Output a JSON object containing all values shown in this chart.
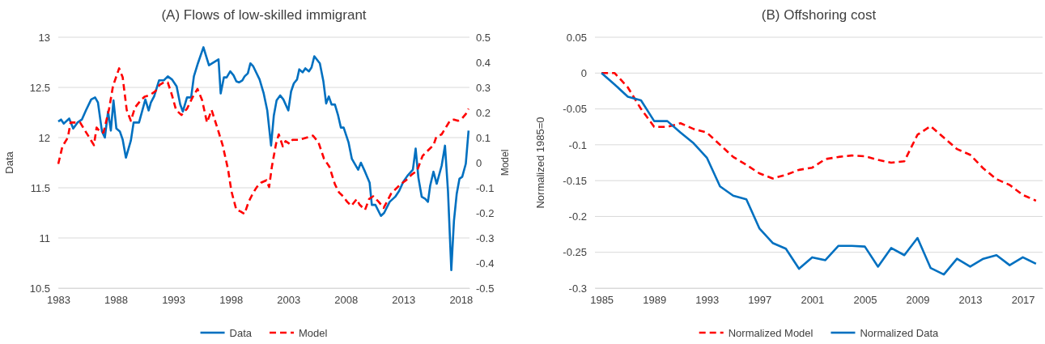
{
  "chart_data": [
    {
      "type": "line",
      "title": "(A) Flows of low-skilled immigrant",
      "ylabel": "Data",
      "y2label": "Model",
      "xlim": [
        1983,
        2018.75
      ],
      "xticks": [
        1983,
        1988,
        1993,
        1998,
        2003,
        2008,
        2013,
        2018
      ],
      "ylim": [
        10.5,
        13
      ],
      "yticks": [
        10.5,
        11,
        11.5,
        12,
        12.5,
        13
      ],
      "y2lim": [
        -0.5,
        0.5
      ],
      "y2ticks": [
        -0.5,
        -0.4,
        -0.3,
        -0.2,
        -0.1,
        0,
        0.1,
        0.2,
        0.3,
        0.4,
        0.5
      ],
      "grid": "y",
      "legend": "bottom",
      "series": [
        {
          "name": "Data",
          "color": "#0070c0",
          "line_style": "solid",
          "x": [
            1983.0,
            1983.24,
            1983.48,
            1983.95,
            1984.3,
            1984.67,
            1985.05,
            1985.4,
            1985.86,
            1986.2,
            1986.45,
            1986.8,
            1987.05,
            1987.33,
            1987.57,
            1987.8,
            1988.05,
            1988.36,
            1988.6,
            1988.88,
            1989.31,
            1989.55,
            1990.02,
            1990.57,
            1990.86,
            1991.05,
            1991.33,
            1991.76,
            1992.17,
            1992.52,
            1992.88,
            1993.29,
            1993.6,
            1993.83,
            1994.19,
            1994.55,
            1994.79,
            1995.14,
            1995.62,
            1996.1,
            1996.93,
            1997.12,
            1997.4,
            1997.64,
            1997.95,
            1998.24,
            1998.48,
            1998.71,
            1999.0,
            1999.2,
            1999.48,
            1999.7,
            1999.95,
            2000.5,
            2000.86,
            2001.17,
            2001.5,
            2001.74,
            2001.98,
            2002.29,
            2002.57,
            2003.0,
            2003.24,
            2003.48,
            2003.76,
            2003.95,
            2004.24,
            2004.48,
            2004.79,
            2005.02,
            2005.26,
            2005.74,
            2006.05,
            2006.29,
            2006.52,
            2006.76,
            2007.05,
            2007.33,
            2007.57,
            2007.81,
            2008.24,
            2008.52,
            2009.07,
            2009.31,
            2009.67,
            2010.07,
            2010.26,
            2010.57,
            2011.05,
            2011.33,
            2011.81,
            2012.29,
            2012.64,
            2013.0,
            2013.36,
            2013.83,
            2014.07,
            2014.31,
            2014.6,
            2014.9,
            2015.14,
            2015.33,
            2015.62,
            2015.9,
            2016.33,
            2016.62,
            2016.88,
            2017.17,
            2017.4,
            2017.64,
            2017.88,
            2018.12,
            2018.43,
            2018.67
          ],
          "values": [
            12.16,
            12.18,
            12.14,
            12.19,
            12.09,
            12.15,
            12.18,
            12.27,
            12.38,
            12.4,
            12.35,
            12.06,
            12.0,
            12.26,
            12.07,
            12.37,
            12.09,
            12.06,
            11.98,
            11.8,
            11.97,
            12.15,
            12.15,
            12.38,
            12.27,
            12.35,
            12.41,
            12.57,
            12.57,
            12.61,
            12.58,
            12.51,
            12.33,
            12.26,
            12.4,
            12.4,
            12.61,
            12.74,
            12.9,
            12.72,
            12.78,
            12.44,
            12.6,
            12.6,
            12.66,
            12.62,
            12.56,
            12.55,
            12.57,
            12.61,
            12.64,
            12.74,
            12.71,
            12.58,
            12.44,
            12.27,
            11.92,
            12.22,
            12.37,
            12.42,
            12.38,
            12.27,
            12.46,
            12.54,
            12.58,
            12.68,
            12.65,
            12.69,
            12.66,
            12.7,
            12.81,
            12.74,
            12.56,
            12.34,
            12.41,
            12.33,
            12.33,
            12.22,
            12.1,
            12.1,
            11.95,
            11.79,
            11.68,
            11.75,
            11.66,
            11.55,
            11.33,
            11.33,
            11.22,
            11.25,
            11.36,
            11.41,
            11.47,
            11.56,
            11.62,
            11.68,
            11.89,
            11.6,
            11.41,
            11.39,
            11.36,
            11.52,
            11.66,
            11.54,
            11.72,
            11.92,
            11.47,
            10.68,
            11.17,
            11.44,
            11.59,
            11.61,
            11.74,
            12.07
          ]
        },
        {
          "name": "Model",
          "color": "#ff0000",
          "line_style": "dashed",
          "axis": "y2",
          "x": [
            1983.0,
            1983.36,
            1983.83,
            1984.07,
            1984.9,
            1985.38,
            1986.1,
            1986.33,
            1986.69,
            1986.93,
            1987.4,
            1987.76,
            1988.29,
            1988.6,
            1988.95,
            1989.31,
            1989.67,
            1990.14,
            1990.5,
            1990.98,
            1991.45,
            1991.81,
            1992.17,
            1992.52,
            1992.88,
            1993.24,
            1993.71,
            1994.19,
            1994.67,
            1995.1,
            1995.5,
            1995.93,
            1996.33,
            1996.93,
            1997.29,
            1997.76,
            1998.05,
            1998.48,
            1998.83,
            1999.19,
            1999.55,
            1999.9,
            2000.26,
            2000.62,
            2001.1,
            2001.33,
            2001.57,
            2001.93,
            2002.17,
            2002.52,
            2002.76,
            2003.12,
            2003.36,
            2003.95,
            2005.14,
            2005.62,
            2006.1,
            2006.57,
            2007.05,
            2007.4,
            2007.76,
            2008.12,
            2008.48,
            2008.95,
            2009.19,
            2009.67,
            2010.02,
            2010.38,
            2010.86,
            2011.29,
            2011.57,
            2011.93,
            2012.4,
            2012.76,
            2013.24,
            2013.71,
            2014.19,
            2014.67,
            2015.26,
            2015.62,
            2015.86,
            2016.33,
            2016.69,
            2017.05,
            2017.4,
            2017.76,
            2018.12,
            2018.43,
            2018.67
          ],
          "values": [
            -0.005,
            0.065,
            0.1,
            0.16,
            0.16,
            0.124,
            0.07,
            0.14,
            0.12,
            0.12,
            0.21,
            0.306,
            0.376,
            0.34,
            0.21,
            0.167,
            0.22,
            0.247,
            0.263,
            0.27,
            0.285,
            0.31,
            0.32,
            0.32,
            0.27,
            0.21,
            0.19,
            0.215,
            0.26,
            0.294,
            0.25,
            0.16,
            0.21,
            0.124,
            0.07,
            -0.027,
            -0.113,
            -0.188,
            -0.194,
            -0.204,
            -0.156,
            -0.124,
            -0.097,
            -0.08,
            -0.07,
            -0.097,
            -0.016,
            0.075,
            0.113,
            0.065,
            0.086,
            0.075,
            0.091,
            0.091,
            0.108,
            0.081,
            0.016,
            -0.016,
            -0.086,
            -0.118,
            -0.134,
            -0.156,
            -0.172,
            -0.145,
            -0.167,
            -0.188,
            -0.145,
            -0.134,
            -0.156,
            -0.18,
            -0.156,
            -0.124,
            -0.102,
            -0.086,
            -0.07,
            -0.048,
            -0.032,
            0.027,
            0.054,
            0.07,
            0.102,
            0.113,
            0.14,
            0.167,
            0.172,
            0.167,
            0.177,
            0.194,
            0.215
          ]
        }
      ]
    },
    {
      "type": "line",
      "title": "(B) Offshoring cost",
      "ylabel": "Normalized 1985=0",
      "xlim": [
        1984.5,
        2018.5
      ],
      "xticks": [
        1985,
        1989,
        1993,
        1997,
        2001,
        2005,
        2009,
        2013,
        2017
      ],
      "ylim": [
        -0.3,
        0.05
      ],
      "yticks": [
        -0.3,
        -0.25,
        -0.2,
        -0.15,
        -0.1,
        -0.05,
        0,
        0.05
      ],
      "grid": "y",
      "legend": "bottom",
      "x": [
        1985,
        1986,
        1987,
        1988,
        1989,
        1990,
        1991,
        1992,
        1993,
        1994,
        1995,
        1996,
        1997,
        1998,
        1999,
        2000,
        2001,
        2002,
        2003,
        2004,
        2005,
        2006,
        2007,
        2008,
        2009,
        2010,
        2011,
        2012,
        2013,
        2014,
        2015,
        2016,
        2017,
        2018
      ],
      "series": [
        {
          "name": "Normalized Model",
          "color": "#ff0000",
          "line_style": "dashed",
          "values": [
            0,
            0,
            -0.02,
            -0.05,
            -0.075,
            -0.075,
            -0.07,
            -0.078,
            -0.083,
            -0.1,
            -0.117,
            -0.128,
            -0.14,
            -0.147,
            -0.142,
            -0.135,
            -0.132,
            -0.12,
            -0.117,
            -0.115,
            -0.116,
            -0.121,
            -0.125,
            -0.123,
            -0.086,
            -0.074,
            -0.09,
            -0.106,
            -0.114,
            -0.133,
            -0.148,
            -0.156,
            -0.17,
            -0.178
          ]
        },
        {
          "name": "Normalized Data",
          "color": "#0070c0",
          "line_style": "solid",
          "values": [
            0,
            -0.016,
            -0.033,
            -0.038,
            -0.067,
            -0.067,
            -0.083,
            -0.098,
            -0.118,
            -0.158,
            -0.171,
            -0.176,
            -0.217,
            -0.237,
            -0.245,
            -0.273,
            -0.257,
            -0.261,
            -0.241,
            -0.241,
            -0.242,
            -0.27,
            -0.244,
            -0.254,
            -0.23,
            -0.272,
            -0.281,
            -0.259,
            -0.27,
            -0.259,
            -0.254,
            -0.268,
            -0.257,
            -0.266
          ]
        }
      ]
    }
  ]
}
